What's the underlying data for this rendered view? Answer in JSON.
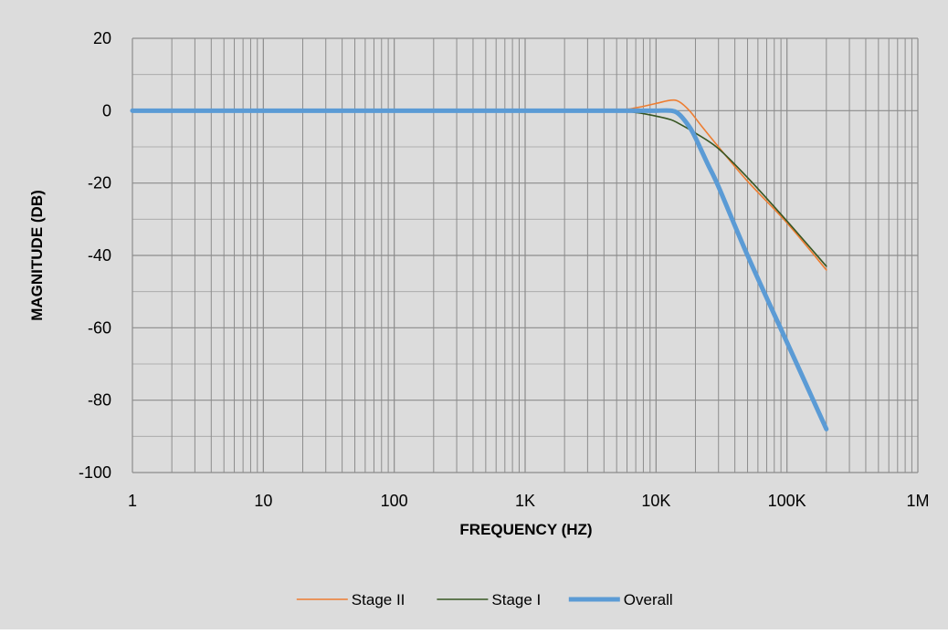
{
  "chart_data": {
    "type": "line",
    "title": "",
    "xlabel": "FREQUENCY (HZ)",
    "ylabel": "MAGNITUDE (DB)",
    "x_scale": "log",
    "xlim": [
      1,
      1000000
    ],
    "ylim": [
      -100,
      20
    ],
    "x_ticks": [
      1,
      10,
      100,
      1000,
      10000,
      100000,
      1000000
    ],
    "x_tick_labels": [
      "1",
      "10",
      "100",
      "1K",
      "10K",
      "100K",
      "1M"
    ],
    "y_ticks": [
      20,
      0,
      -20,
      -40,
      -60,
      -80,
      -100
    ],
    "y_tick_labels": [
      "20",
      "0",
      "-20",
      "-40",
      "-60",
      "-80",
      "-100"
    ],
    "grid": true,
    "legend_position": "bottom",
    "background_color": "#dcdcdc",
    "plot_background_color": "#dcdcdc",
    "grid_color": "#8c8c8c",
    "series": [
      {
        "name": "Stage II",
        "color": "#ed7d31",
        "line_width": "thin",
        "x": [
          1,
          100,
          1000,
          5000,
          7000,
          10000,
          13000,
          15000,
          18000,
          22000,
          30000,
          50000,
          100000,
          200000
        ],
        "y": [
          0,
          0,
          0,
          0.3,
          0.8,
          2.0,
          2.9,
          2.5,
          0,
          -4,
          -10,
          -19.5,
          -31,
          -44
        ]
      },
      {
        "name": "Stage I",
        "color": "#375623",
        "line_width": "thin",
        "x": [
          1,
          100,
          1000,
          5000,
          7000,
          10000,
          13000,
          15000,
          20000,
          30000,
          50000,
          100000,
          200000
        ],
        "y": [
          0,
          0,
          0,
          -0.2,
          -0.5,
          -1.5,
          -2.5,
          -3.6,
          -6.2,
          -10.5,
          -18.5,
          -30.5,
          -43
        ]
      },
      {
        "name": "Overall",
        "color": "#5b9bd5",
        "line_width": "thick",
        "x": [
          1,
          100,
          1000,
          5000,
          8000,
          10000,
          13000,
          15000,
          18000,
          20000,
          25000,
          30000,
          50000,
          100000,
          200000
        ],
        "y": [
          0,
          0,
          0,
          0,
          0,
          0,
          0,
          -1.0,
          -4.5,
          -7.5,
          -15,
          -21,
          -40,
          -64,
          -88
        ]
      }
    ]
  }
}
